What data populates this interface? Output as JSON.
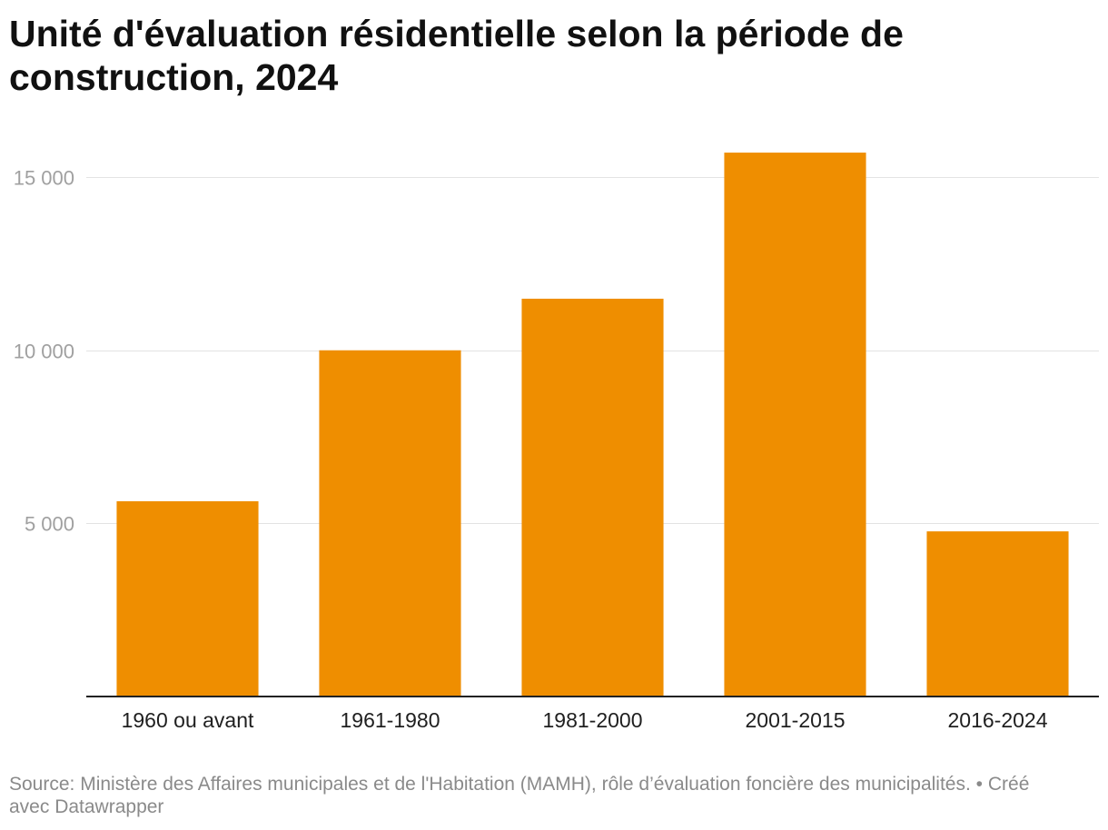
{
  "chart_data": {
    "type": "bar",
    "title": "Unité d'évaluation résidentielle selon la période de construction, 2024",
    "categories": [
      "1960 ou avant",
      "1961-1980",
      "1981-2000",
      "2001-2015",
      "2016-2024"
    ],
    "values": [
      5640,
      10000,
      11490,
      15710,
      4770
    ],
    "ylim": [
      0,
      16000
    ],
    "yticks": [
      5000,
      10000,
      15000
    ],
    "ytick_labels": [
      "5 000",
      "10 000",
      "15 000"
    ],
    "grid": true,
    "bar_color": "#ef8e00"
  },
  "footer": {
    "source_label": "Source:",
    "source_text": "Ministère des Affaires municipales et de l'Habitation (MAMH), rôle d’évaluation foncière des municipalités.",
    "separator": "•",
    "credit": "Créé avec Datawrapper"
  }
}
